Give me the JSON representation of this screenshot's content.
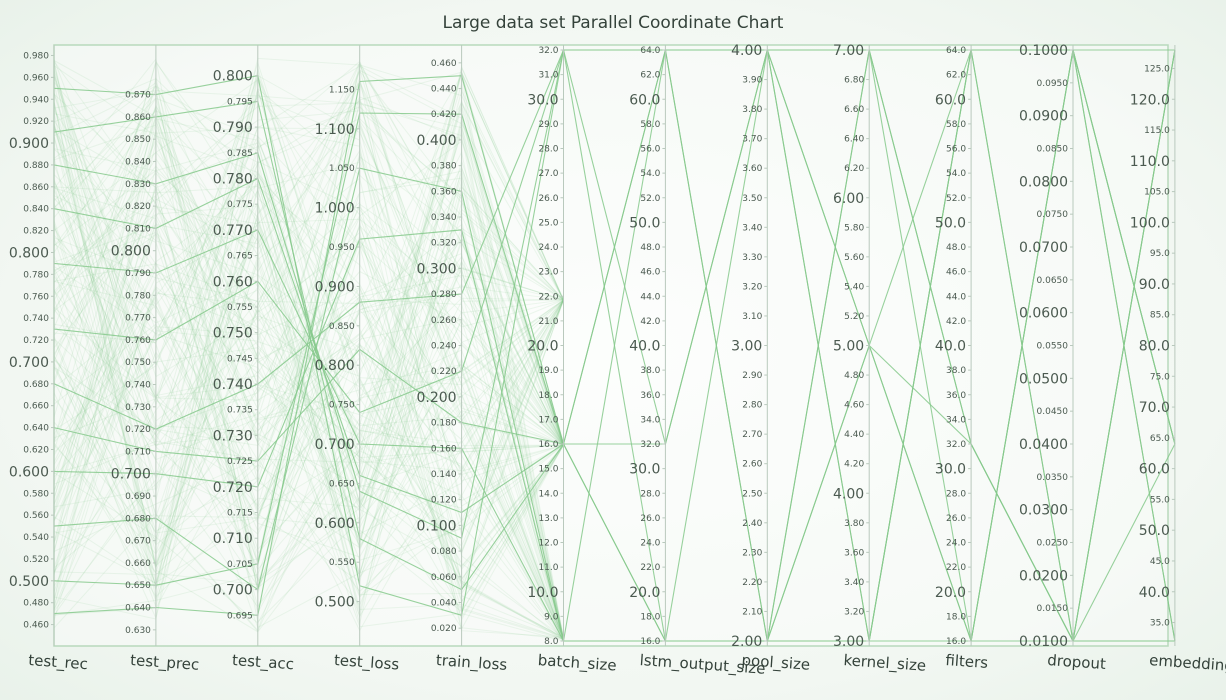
{
  "chart_data": {
    "type": "parallel-coordinates",
    "title": "Large data set Parallel Coordinate Chart",
    "colors": {
      "line": "#86c98c",
      "frame": "#b8d9bc",
      "axis": "#b9c9bd",
      "background": "#f6faf6"
    },
    "axes": [
      {
        "name": "test_rec",
        "range": [
          0.445,
          0.985
        ],
        "decimals": 3,
        "major": [
          0.5,
          0.6,
          0.7,
          0.8,
          0.9
        ],
        "minor": [
          0.46,
          0.48,
          0.52,
          0.54,
          0.56,
          0.58,
          0.62,
          0.64,
          0.66,
          0.68,
          0.72,
          0.74,
          0.76,
          0.78,
          0.82,
          0.84,
          0.86,
          0.88,
          0.92,
          0.94,
          0.96,
          0.98
        ]
      },
      {
        "name": "test_prec",
        "range": [
          0.625,
          0.89
        ],
        "decimals": 3,
        "major": [
          0.7,
          0.8
        ],
        "minor": [
          0.63,
          0.64,
          0.65,
          0.66,
          0.67,
          0.68,
          0.69,
          0.71,
          0.72,
          0.73,
          0.74,
          0.75,
          0.76,
          0.77,
          0.78,
          0.79,
          0.81,
          0.82,
          0.83,
          0.84,
          0.85,
          0.86,
          0.87
        ]
      },
      {
        "name": "test_acc",
        "range": [
          0.69,
          0.805
        ],
        "decimals": 3,
        "major": [
          0.7,
          0.71,
          0.72,
          0.73,
          0.74,
          0.75,
          0.76,
          0.77,
          0.78,
          0.79,
          0.8
        ],
        "minor": [
          0.695,
          0.705,
          0.715,
          0.725,
          0.735,
          0.745,
          0.755,
          0.765,
          0.775,
          0.785,
          0.795
        ]
      },
      {
        "name": "test_loss",
        "range": [
          0.45,
          1.2
        ],
        "decimals": 3,
        "major": [
          0.5,
          0.6,
          0.7,
          0.8,
          0.9,
          1.0,
          1.1
        ],
        "minor": [
          0.55,
          0.65,
          0.75,
          0.85,
          0.95,
          1.05,
          1.15
        ]
      },
      {
        "name": "train_loss",
        "range": [
          0.01,
          0.47
        ],
        "decimals": 3,
        "major": [
          0.1,
          0.2,
          0.3,
          0.4
        ],
        "minor": [
          0.02,
          0.04,
          0.06,
          0.08,
          0.12,
          0.14,
          0.16,
          0.18,
          0.22,
          0.24,
          0.26,
          0.28,
          0.32,
          0.34,
          0.36,
          0.38,
          0.42,
          0.44,
          0.46
        ]
      },
      {
        "name": "batch_size",
        "range": [
          8,
          32
        ],
        "decimals": 1,
        "major": [
          10,
          20,
          30
        ],
        "minor": [
          8,
          9,
          11,
          12,
          13,
          14,
          15,
          16,
          17,
          18,
          19,
          21,
          22,
          23,
          24,
          25,
          26,
          27,
          28,
          29,
          31,
          32
        ]
      },
      {
        "name": "lstm_output_size",
        "range": [
          16,
          64
        ],
        "decimals": 1,
        "major": [
          20,
          30,
          40,
          50,
          60
        ],
        "minor": [
          16,
          18,
          22,
          24,
          26,
          28,
          32,
          34,
          36,
          38,
          42,
          44,
          46,
          48,
          52,
          54,
          56,
          58,
          62,
          64
        ]
      },
      {
        "name": "pool_size",
        "range": [
          2,
          4
        ],
        "decimals": 2,
        "major": [
          2,
          3,
          4
        ],
        "minor": [
          2.1,
          2.2,
          2.3,
          2.4,
          2.5,
          2.6,
          2.7,
          2.8,
          2.9,
          3.1,
          3.2,
          3.3,
          3.4,
          3.5,
          3.6,
          3.7,
          3.8,
          3.9
        ]
      },
      {
        "name": "kernel_size",
        "range": [
          3,
          7
        ],
        "decimals": 2,
        "major": [
          3,
          4,
          5,
          6,
          7
        ],
        "minor": [
          3.2,
          3.4,
          3.6,
          3.8,
          4.2,
          4.4,
          4.6,
          4.8,
          5.2,
          5.4,
          5.6,
          5.8,
          6.2,
          6.4,
          6.6,
          6.8
        ]
      },
      {
        "name": "filters",
        "range": [
          16,
          64
        ],
        "decimals": 1,
        "major": [
          20,
          30,
          40,
          50,
          60
        ],
        "minor": [
          16,
          18,
          22,
          24,
          26,
          28,
          32,
          34,
          36,
          38,
          42,
          44,
          46,
          48,
          52,
          54,
          56,
          58,
          62,
          64
        ]
      },
      {
        "name": "dropout",
        "range": [
          0.01,
          0.1
        ],
        "decimals": 4,
        "major": [
          0.01,
          0.02,
          0.03,
          0.04,
          0.05,
          0.06,
          0.07,
          0.08,
          0.09,
          0.1
        ],
        "minor": [
          0.015,
          0.025,
          0.035,
          0.045,
          0.055,
          0.065,
          0.075,
          0.085,
          0.095
        ]
      },
      {
        "name": "embedding_dim",
        "range": [
          32,
          128
        ],
        "decimals": 1,
        "major": [
          40,
          50,
          60,
          70,
          80,
          90,
          100,
          110,
          120
        ],
        "minor": [
          35,
          45,
          55,
          65,
          75,
          85,
          95,
          105,
          115,
          125
        ]
      }
    ],
    "records": [
      [
        0.64,
        0.71,
        0.725,
        0.82,
        0.18,
        16,
        16,
        2,
        3,
        16,
        0.01,
        32
      ],
      [
        0.88,
        0.83,
        0.785,
        0.64,
        0.09,
        32,
        64,
        4,
        5,
        32,
        0.01,
        128
      ],
      [
        0.55,
        0.68,
        0.7,
        1.05,
        0.36,
        8,
        16,
        2,
        7,
        16,
        0.1,
        64
      ],
      [
        0.73,
        0.76,
        0.76,
        0.74,
        0.22,
        32,
        64,
        4,
        3,
        64,
        0.1,
        32
      ],
      [
        0.91,
        0.86,
        0.795,
        0.58,
        0.05,
        16,
        32,
        4,
        3,
        64,
        0.01,
        128
      ],
      [
        0.5,
        0.65,
        0.705,
        1.12,
        0.42,
        16,
        64,
        2,
        5,
        16,
        0.1,
        32
      ],
      [
        0.79,
        0.79,
        0.77,
        0.7,
        0.16,
        8,
        16,
        4,
        7,
        32,
        0.01,
        64
      ],
      [
        0.68,
        0.72,
        0.74,
        0.88,
        0.28,
        32,
        16,
        2,
        3,
        64,
        0.01,
        128
      ],
      [
        0.84,
        0.81,
        0.78,
        0.66,
        0.11,
        16,
        64,
        4,
        5,
        16,
        0.1,
        64
      ],
      [
        0.6,
        0.7,
        0.72,
        0.96,
        0.33,
        8,
        64,
        2,
        7,
        64,
        0.1,
        128
      ],
      [
        0.95,
        0.87,
        0.8,
        0.52,
        0.03,
        32,
        32,
        4,
        7,
        32,
        0.01,
        32
      ],
      [
        0.47,
        0.64,
        0.695,
        1.16,
        0.45,
        16,
        16,
        2,
        5,
        64,
        0.1,
        64
      ]
    ]
  }
}
